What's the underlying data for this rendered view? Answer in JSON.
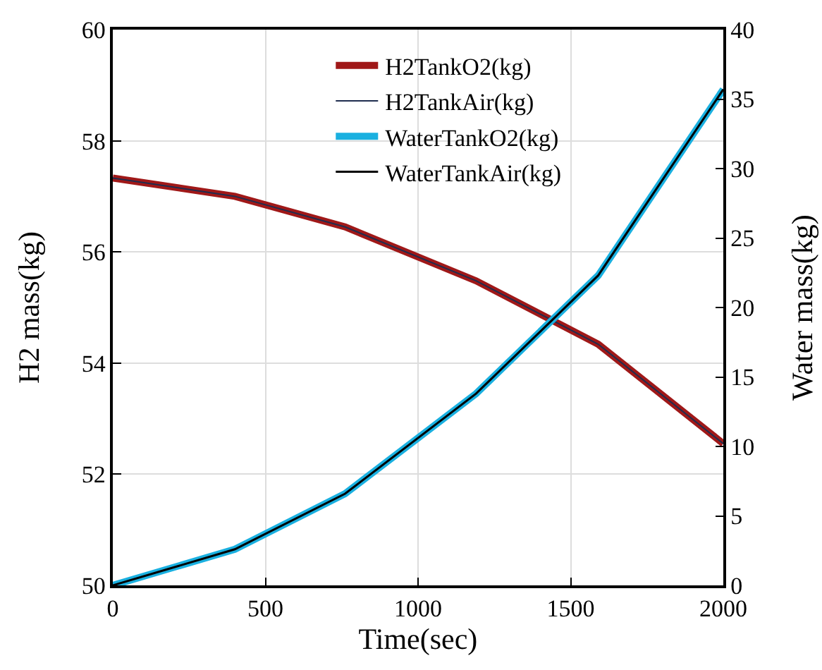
{
  "chart_data": {
    "type": "line",
    "xlabel": "Time(sec)",
    "ylabel": "H2 mass(kg)",
    "y2label": "Water mass(kg)",
    "x": [
      0,
      400,
      761,
      1190,
      1590,
      2000
    ],
    "series": [
      {
        "name": "H2TankO2(kg)",
        "color": "#a01818",
        "values": [
          57.33,
          57.0,
          56.45,
          55.48,
          54.34,
          52.55
        ]
      },
      {
        "name": "H2TankAir(kg)",
        "color": "#1f2d4f",
        "values": [
          57.33,
          57.0,
          56.45,
          55.48,
          54.34,
          52.55
        ]
      },
      {
        "name": "WaterTankO2(kg)",
        "color": "#1ab0e0",
        "axis": "y2",
        "values": [
          0,
          2.6,
          6.6,
          13.8,
          22.3,
          35.7
        ]
      },
      {
        "name": "WaterTankAir(kg)",
        "color": "#000000",
        "axis": "y2",
        "values": [
          0,
          2.6,
          6.6,
          13.8,
          22.3,
          35.7
        ]
      }
    ],
    "xlim": [
      0,
      2000
    ],
    "xticks": [
      0,
      500,
      1000,
      1500,
      2000
    ],
    "ylim": [
      50,
      60
    ],
    "yticks": [
      50,
      52,
      54,
      56,
      58,
      60
    ],
    "y2lim": [
      0,
      40
    ],
    "y2ticks": [
      0,
      5,
      10,
      15,
      20,
      25,
      30,
      35,
      40
    ],
    "grid": true,
    "legend": "top",
    "marker": "none",
    "line_style": "solid"
  }
}
